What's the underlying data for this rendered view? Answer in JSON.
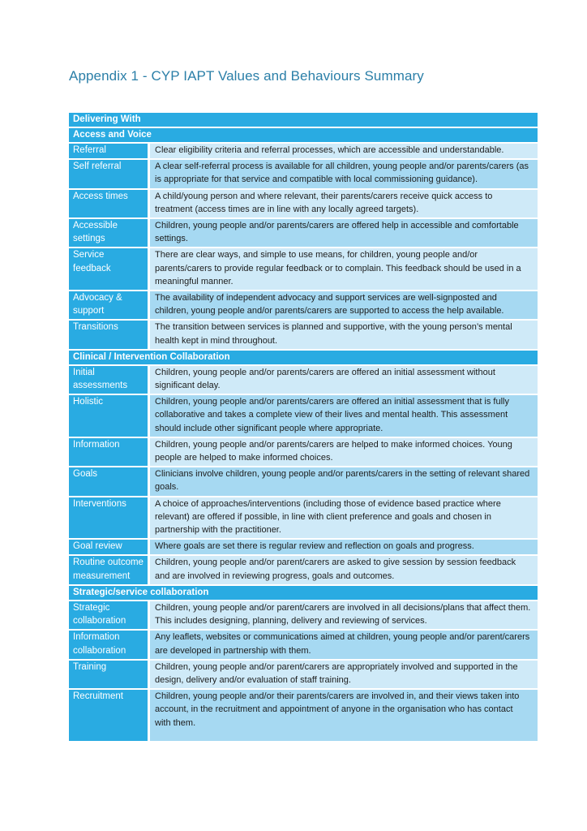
{
  "page": {
    "title": "Appendix 1 - CYP IAPT Values and Behaviours Summary"
  },
  "colors": {
    "header_blue": "#29abe2",
    "row_light": "#cfeaf8",
    "row_medium": "#a6d9f2",
    "title_blue": "#2b7fa8",
    "body_text": "#1d1d1d"
  },
  "table": {
    "top_header": "Delivering With",
    "sections": [
      {
        "header": "Access and Voice",
        "rows": [
          {
            "label": "Referral",
            "text": "Clear eligibility criteria and referral processes, which are accessible and understandable."
          },
          {
            "label": "Self referral",
            "text": "A clear self-referral process is available for all children, young people and/or parents/carers (as is appropriate for that service and compatible with local commissioning guidance)."
          },
          {
            "label": "Access times",
            "text": "A child/young person and where relevant, their parents/carers receive quick access to treatment (access times are in line with any locally agreed targets)."
          },
          {
            "label": "Accessible settings",
            "text": "Children, young people and/or parents/carers are offered help in accessible and comfortable settings."
          },
          {
            "label": "Service feedback",
            "text": "There are clear ways, and simple to use means, for children, young people and/or parents/carers to provide regular feedback or to complain. This feedback should be used in a meaningful manner."
          },
          {
            "label": "Advocacy & support",
            "text": "The availability of independent advocacy and support services are well-signposted and children, young people and/or parents/carers are supported to access the help available."
          },
          {
            "label": "Transitions",
            "text": "The transition between services is planned and supportive, with the young person’s mental health kept in mind throughout."
          }
        ]
      },
      {
        "header": "Clinical / Intervention Collaboration",
        "rows": [
          {
            "label": "Initial assessments",
            "text": "Children, young people and/or parents/carers are offered an initial assessment without significant delay."
          },
          {
            "label": "Holistic",
            "text": "Children, young people and/or parents/carers are offered an initial assessment that is fully collaborative and takes a complete view of their lives and mental health. This assessment should include other significant people where appropriate."
          },
          {
            "label": "Information",
            "text": "Children, young people and/or parents/carers are helped to make informed choices. Young people are helped to make informed choices."
          },
          {
            "label": "Goals",
            "text": "Clinicians involve children, young people and/or parents/carers in the setting of relevant shared goals."
          },
          {
            "label": "Interventions",
            "text": "A choice of approaches/interventions (including those of evidence based practice where relevant) are offered if possible, in line with client preference and goals and chosen in partnership with the practitioner."
          },
          {
            "label": "Goal review",
            "text": "Where goals are set there is regular review and reflection on goals and progress."
          },
          {
            "label": "Routine outcome measurement",
            "text": "Children, young people and/or parent/carers are asked to give session by session feedback and are involved in reviewing progress, goals and outcomes."
          }
        ]
      },
      {
        "header": "Strategic/service collaboration",
        "rows": [
          {
            "label": "Strategic collaboration",
            "text": "Children, young people and/or parent/carers are involved in all decisions/plans that affect them. This includes designing, planning, delivery and reviewing of services."
          },
          {
            "label": "Information collaboration",
            "text": "Any leaflets, websites or communications aimed at children, young people and/or parent/carers are developed in partnership with them."
          },
          {
            "label": "Training",
            "text": "Children, young people and/or parent/carers are appropriately involved and supported in the design, delivery and/or evaluation of staff training."
          },
          {
            "label": "Recruitment",
            "text": "Children, young people and/or their parents/carers are involved in, and their views taken into account, in the recruitment and appointment of anyone in the organisation who has contact with them."
          }
        ]
      }
    ]
  }
}
